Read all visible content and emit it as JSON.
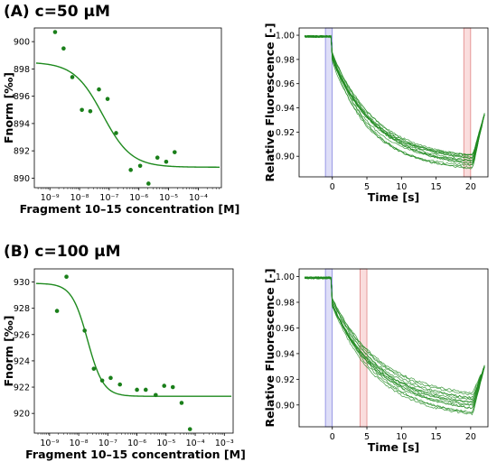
{
  "panels": [
    {
      "label": "(A) c=50 μM"
    },
    {
      "label": "(B) c=100 μM"
    }
  ],
  "colors": {
    "series": "#1e8a1e",
    "point": "#1a7f1a",
    "baseline_band": "#c8c8f2",
    "baseline_band_edge": "#7777dd",
    "cold_band": "#f6c6c6",
    "cold_band_edge": "#dd7777"
  },
  "chart_data": [
    {
      "type": "scatter",
      "panel": "A",
      "xlabel": "Fragment 10–15 concentration [M]",
      "ylabel": "Fnorm [‰]",
      "x_scale": "log",
      "xlim": [
        3e-10,
        0.0006
      ],
      "ylim": [
        889.3,
        901.0
      ],
      "x_ticks": [
        1e-09,
        1e-08,
        1e-07,
        1e-06,
        1e-05,
        0.0001
      ],
      "x_tick_labels": [
        "10⁻⁹",
        "10⁻⁸",
        "10⁻⁷",
        "10⁻⁶",
        "10⁻⁵",
        "10⁻⁴"
      ],
      "y_ticks": [
        890,
        892,
        894,
        896,
        898,
        900
      ],
      "points": [
        {
          "x": 1.5e-09,
          "y": 900.7
        },
        {
          "x": 2.9e-09,
          "y": 899.5
        },
        {
          "x": 5.7e-09,
          "y": 897.4
        },
        {
          "x": 1.2e-08,
          "y": 895.0
        },
        {
          "x": 2.3e-08,
          "y": 894.9
        },
        {
          "x": 4.5e-08,
          "y": 896.5
        },
        {
          "x": 8.8e-08,
          "y": 895.8
        },
        {
          "x": 1.7e-07,
          "y": 893.3
        },
        {
          "x": 5.3e-07,
          "y": 890.6
        },
        {
          "x": 1.1e-06,
          "y": 890.9
        },
        {
          "x": 2.1e-06,
          "y": 889.6
        },
        {
          "x": 4.2e-06,
          "y": 891.5
        },
        {
          "x": 8.3e-06,
          "y": 891.2
        },
        {
          "x": 1.6e-05,
          "y": 891.9
        }
      ],
      "fit": {
        "top": 898.5,
        "bottom": 890.8,
        "ec50": 6e-08,
        "hill": 0.9
      }
    },
    {
      "type": "line",
      "panel": "A",
      "xlabel": "Time [s]",
      "ylabel": "Relative Fluorescence [-]",
      "xlim": [
        -4.8,
        22.5
      ],
      "ylim": [
        0.883,
        1.006
      ],
      "x_ticks": [
        0,
        5,
        10,
        15,
        20
      ],
      "y_ticks": [
        0.9,
        0.92,
        0.94,
        0.96,
        0.98,
        1.0
      ],
      "y_tick_labels": [
        "0.90",
        "0.92",
        "0.94",
        "0.96",
        "0.98",
        "1.00"
      ],
      "baseline_band": [
        -1,
        0
      ],
      "cold_band": [
        19,
        20
      ],
      "n_traces": 14,
      "trace_model": {
        "start": 0.999,
        "drop_to": 0.982,
        "tau": 6.0,
        "final_range": [
          0.887,
          0.899
        ],
        "recovery_to": 0.935
      }
    },
    {
      "type": "scatter",
      "panel": "B",
      "xlabel": "Fragment 10–15 concentration [M]",
      "ylabel": "Fnorm [‰]",
      "x_scale": "log",
      "xlim": [
        3e-10,
        0.002
      ],
      "ylim": [
        918.5,
        931.0
      ],
      "x_ticks": [
        1e-09,
        1e-08,
        1e-07,
        1e-06,
        1e-05,
        0.0001,
        0.001
      ],
      "x_tick_labels": [
        "10⁻⁹",
        "10⁻⁸",
        "10⁻⁷",
        "10⁻⁶",
        "10⁻⁵",
        "10⁻⁴",
        "10⁻³"
      ],
      "y_ticks": [
        920,
        922,
        924,
        926,
        928,
        930
      ],
      "points": [
        {
          "x": 1.8e-09,
          "y": 927.8
        },
        {
          "x": 3.8e-09,
          "y": 930.4
        },
        {
          "x": 1.6e-08,
          "y": 926.3
        },
        {
          "x": 3.3e-08,
          "y": 923.4
        },
        {
          "x": 6.4e-08,
          "y": 922.5
        },
        {
          "x": 1.25e-07,
          "y": 922.7
        },
        {
          "x": 2.6e-07,
          "y": 922.2
        },
        {
          "x": 1e-06,
          "y": 921.8
        },
        {
          "x": 2e-06,
          "y": 921.8
        },
        {
          "x": 4.4e-06,
          "y": 921.4
        },
        {
          "x": 8.6e-06,
          "y": 922.1
        },
        {
          "x": 1.7e-05,
          "y": 922.0
        },
        {
          "x": 3.4e-05,
          "y": 920.8
        },
        {
          "x": 6.6e-05,
          "y": 918.8
        }
      ],
      "fit": {
        "top": 929.9,
        "bottom": 921.3,
        "ec50": 2e-08,
        "hill": 1.6
      }
    },
    {
      "type": "line",
      "panel": "B",
      "xlabel": "Time [s]",
      "ylabel": "Relative Fluorescence [-]",
      "xlim": [
        -4.8,
        22.5
      ],
      "ylim": [
        0.883,
        1.006
      ],
      "x_ticks": [
        0,
        5,
        10,
        15,
        20
      ],
      "y_ticks": [
        0.9,
        0.92,
        0.94,
        0.96,
        0.98,
        1.0
      ],
      "y_tick_labels": [
        "0.90",
        "0.92",
        "0.94",
        "0.96",
        "0.98",
        "1.00"
      ],
      "baseline_band": [
        -1,
        0
      ],
      "cold_band": [
        4,
        5
      ],
      "n_traces": 14,
      "trace_model": {
        "start": 0.999,
        "drop_to": 0.98,
        "tau": 6.5,
        "final_range": [
          0.888,
          0.905
        ],
        "recovery_to": 0.93
      }
    }
  ]
}
